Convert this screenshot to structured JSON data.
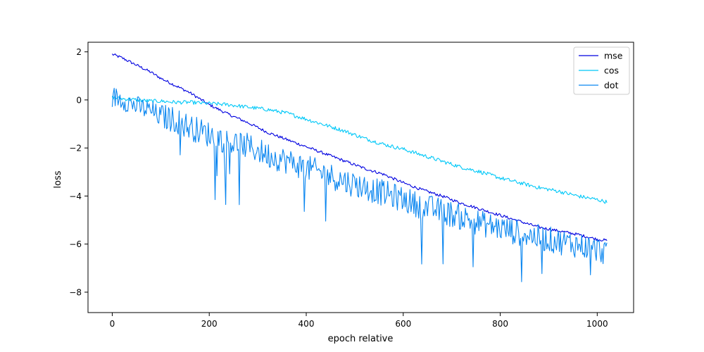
{
  "chart_data": {
    "type": "line",
    "title": "",
    "xlabel": "epoch relative",
    "ylabel": "loss",
    "xlim": [
      -50,
      1075
    ],
    "ylim": [
      -8.85,
      2.4
    ],
    "x_ticks": [
      0,
      200,
      400,
      600,
      800,
      1000
    ],
    "y_ticks": [
      2,
      0,
      -2,
      -4,
      -6,
      -8
    ],
    "x_tick_labels": [
      "0",
      "200",
      "400",
      "600",
      "800",
      "1000"
    ],
    "y_tick_labels": [
      "2",
      "0",
      "−2",
      "−4",
      "−6",
      "−8"
    ],
    "grid": false,
    "legend_position": "top-right",
    "series": [
      {
        "name": "mse",
        "color": "#0000e0",
        "x": [
          0,
          20,
          50,
          80,
          100,
          130,
          160,
          200,
          240,
          280,
          320,
          360,
          400,
          440,
          480,
          520,
          560,
          600,
          640,
          680,
          720,
          760,
          800,
          840,
          880,
          920,
          960,
          1000,
          1020
        ],
        "y": [
          1.9,
          1.75,
          1.45,
          1.15,
          0.9,
          0.6,
          0.3,
          -0.2,
          -0.6,
          -0.95,
          -1.35,
          -1.65,
          -1.95,
          -2.25,
          -2.55,
          -2.85,
          -3.1,
          -3.45,
          -3.75,
          -4.0,
          -4.3,
          -4.55,
          -4.8,
          -5.05,
          -5.3,
          -5.45,
          -5.6,
          -5.8,
          -5.85
        ]
      },
      {
        "name": "cos",
        "color": "#00c8f8",
        "x": [
          0,
          20,
          50,
          80,
          100,
          130,
          160,
          200,
          240,
          280,
          320,
          360,
          400,
          440,
          480,
          520,
          560,
          600,
          640,
          680,
          720,
          760,
          800,
          840,
          880,
          920,
          960,
          1000,
          1020
        ],
        "y": [
          0.1,
          0.05,
          0.0,
          -0.05,
          -0.05,
          -0.1,
          -0.1,
          -0.15,
          -0.2,
          -0.3,
          -0.4,
          -0.55,
          -0.8,
          -1.05,
          -1.3,
          -1.6,
          -1.85,
          -2.05,
          -2.3,
          -2.55,
          -2.8,
          -3.0,
          -3.25,
          -3.45,
          -3.65,
          -3.8,
          -4.0,
          -4.15,
          -4.25
        ]
      },
      {
        "name": "dot",
        "color": "#0a86f0",
        "x": [
          0,
          20,
          50,
          80,
          100,
          130,
          160,
          200,
          240,
          280,
          320,
          360,
          400,
          440,
          480,
          520,
          560,
          600,
          640,
          680,
          720,
          760,
          800,
          840,
          880,
          920,
          960,
          1000,
          1020
        ],
        "y": [
          0.0,
          -0.1,
          -0.4,
          -0.6,
          -0.85,
          -1.0,
          -1.3,
          -1.6,
          -1.9,
          -2.1,
          -2.45,
          -2.7,
          -3.0,
          -3.25,
          -3.55,
          -3.8,
          -4.05,
          -4.3,
          -4.6,
          -4.8,
          -5.05,
          -5.3,
          -5.5,
          -5.7,
          -5.9,
          -6.05,
          -6.2,
          -6.4,
          -6.5
        ]
      }
    ]
  }
}
